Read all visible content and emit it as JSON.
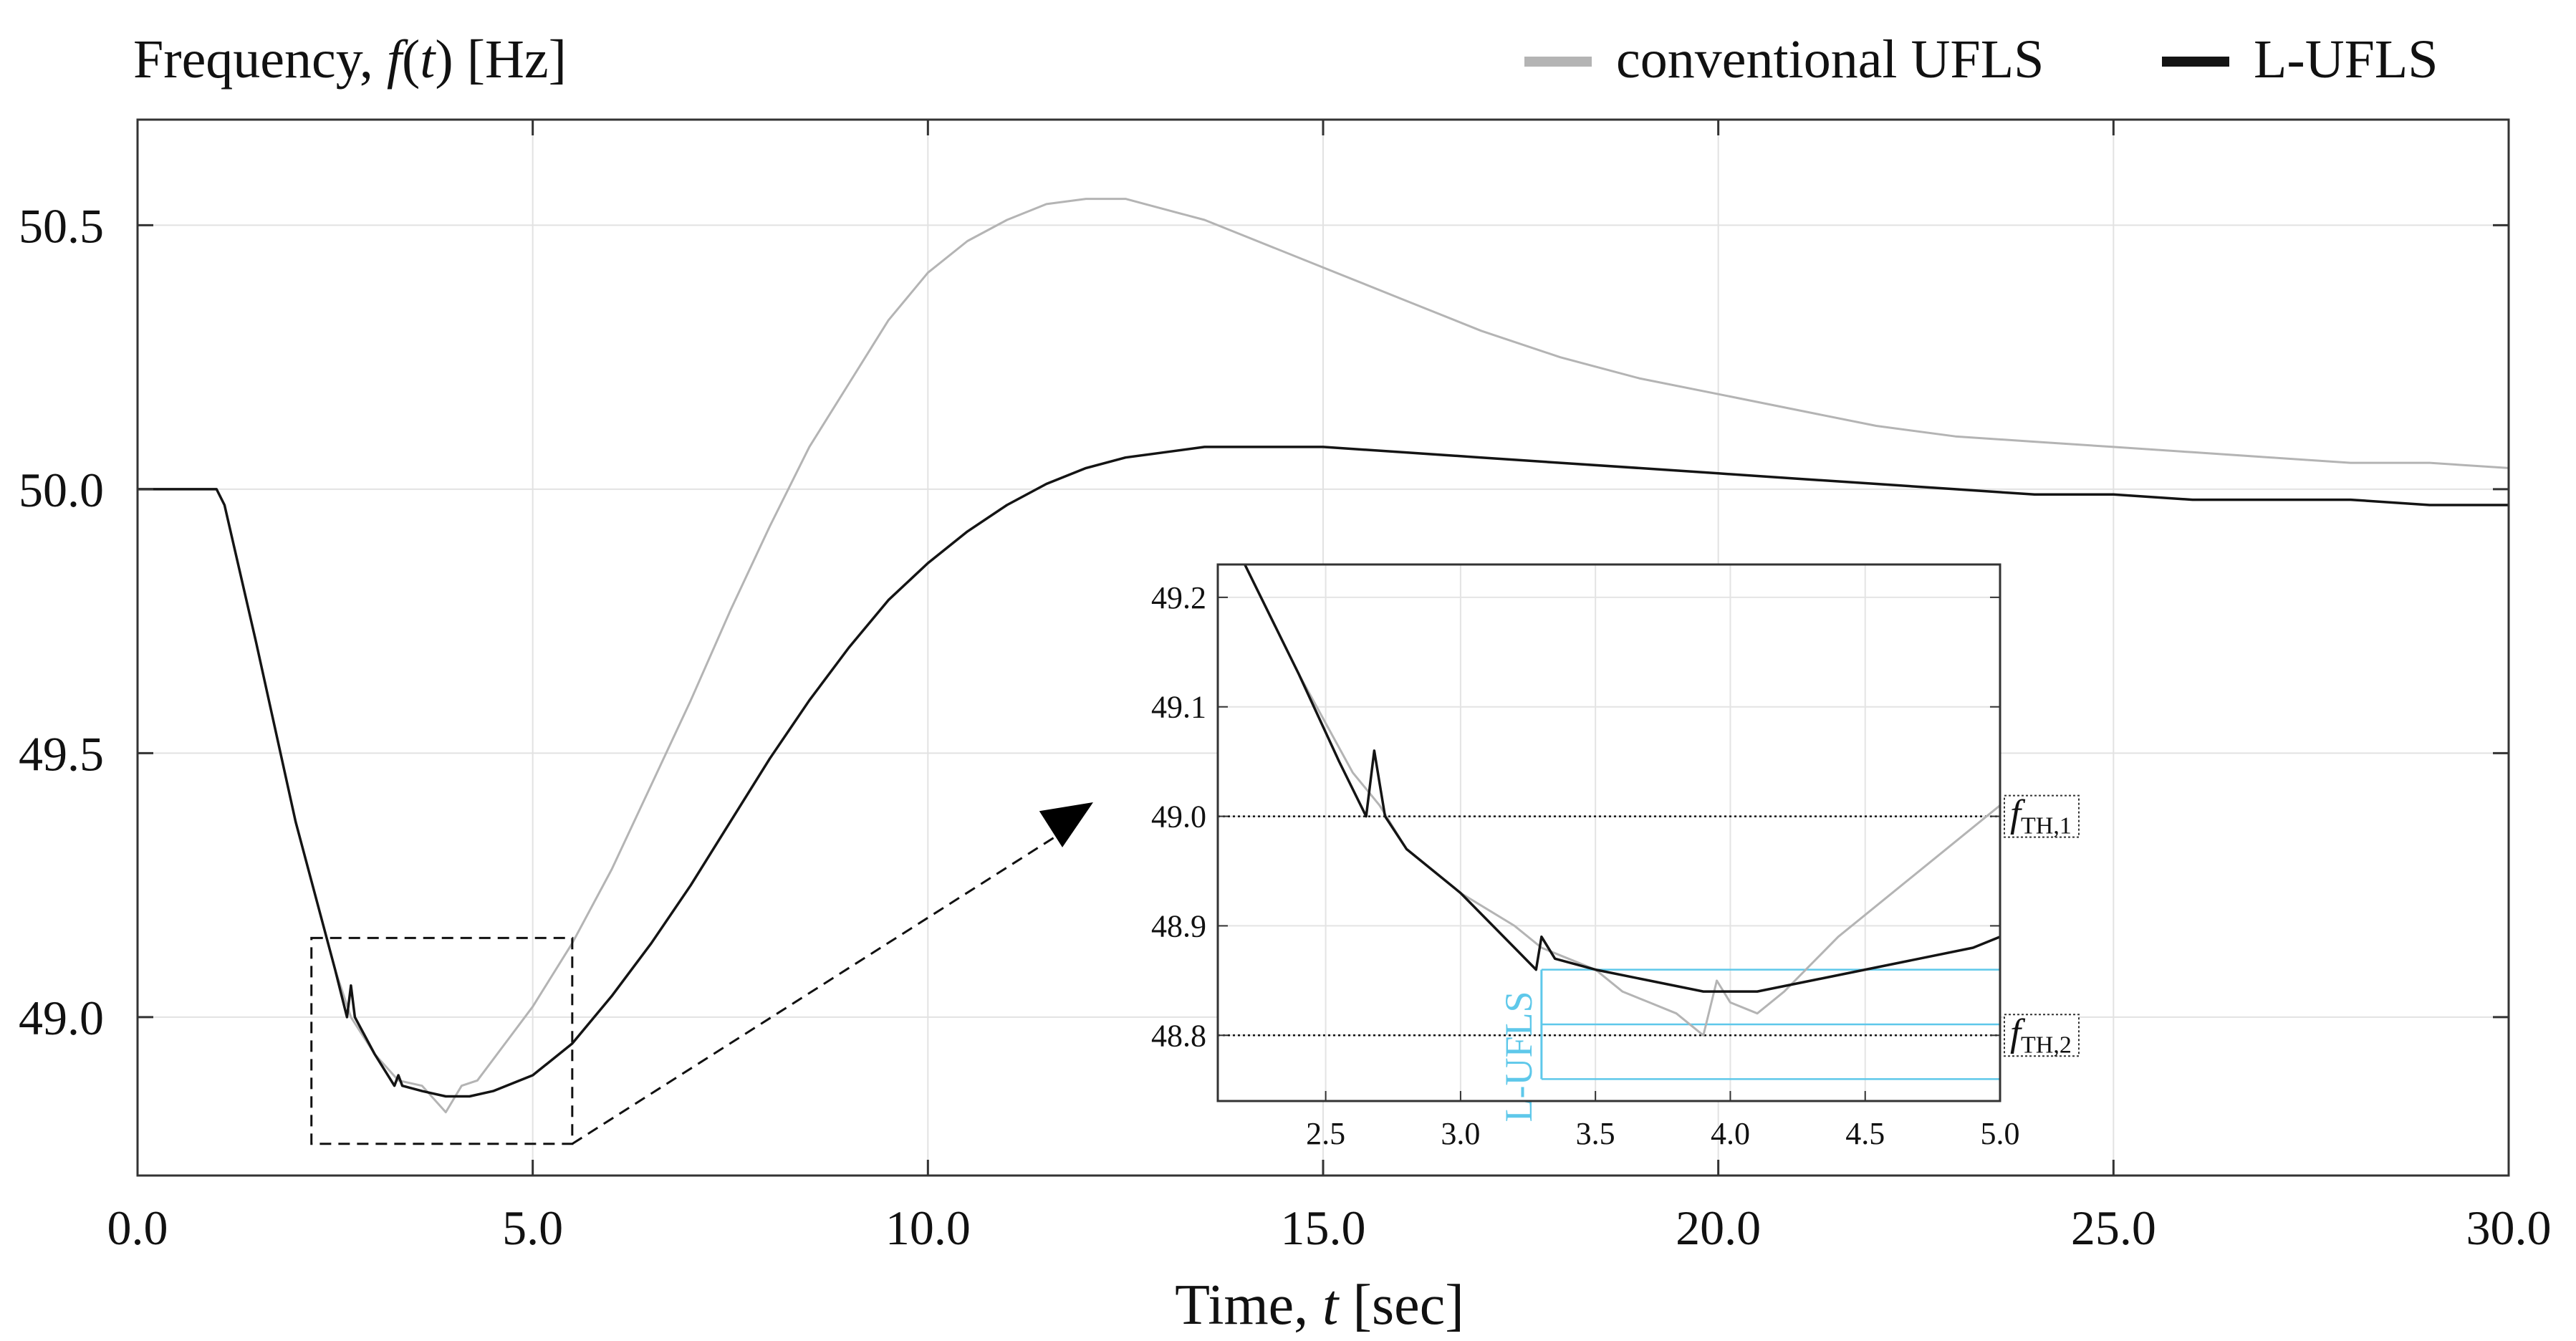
{
  "chart_data": {
    "type": "line",
    "title": "Frequency, f(t) [Hz]",
    "title_parts": {
      "prefix": "Frequency, ",
      "var": "f",
      "arg_open": "(",
      "arg": "t",
      "arg_close": ")",
      "unit": " [Hz]"
    },
    "xlabel": "Time, t [sec]",
    "xlabel_parts": {
      "prefix": "Time, ",
      "var": "t",
      "unit": " [sec]"
    },
    "ylabel": "",
    "xlim": [
      0,
      30
    ],
    "ylim": [
      48.7,
      50.7
    ],
    "xticks": [
      0,
      5,
      10,
      15,
      20,
      25,
      30
    ],
    "xtick_labels": [
      "0.0",
      "5.0",
      "10.0",
      "15.0",
      "20.0",
      "25.0",
      "30.0"
    ],
    "yticks": [
      49.0,
      49.5,
      50.0,
      50.5
    ],
    "ytick_labels": [
      "49.0",
      "49.5",
      "50.0",
      "50.5"
    ],
    "grid": true,
    "legend_position": "top-right",
    "legend": [
      "conventional UFLS",
      "L-UFLS"
    ],
    "series": [
      {
        "name": "conventional UFLS",
        "color": "#b4b4b4",
        "x": [
          0,
          1.0,
          1.1,
          1.5,
          2.0,
          2.5,
          2.7,
          3.0,
          3.3,
          3.6,
          3.9,
          4.1,
          4.3,
          4.7,
          5.0,
          5.5,
          6.0,
          6.5,
          7.0,
          7.5,
          8.0,
          8.5,
          9.0,
          9.5,
          10.0,
          10.5,
          11.0,
          11.5,
          12.0,
          12.5,
          13.0,
          13.5,
          14.0,
          15.0,
          16.0,
          17.0,
          18.0,
          19.0,
          20.0,
          21.0,
          22.0,
          23.0,
          24.0,
          25.0,
          26.0,
          27.0,
          28.0,
          29.0,
          30.0
        ],
        "y": [
          50.0,
          50.0,
          49.97,
          49.71,
          49.37,
          49.09,
          49.0,
          48.93,
          48.88,
          48.87,
          48.82,
          48.87,
          48.88,
          48.96,
          49.02,
          49.14,
          49.28,
          49.44,
          49.6,
          49.77,
          49.93,
          50.08,
          50.2,
          50.32,
          50.41,
          50.47,
          50.51,
          50.54,
          50.55,
          50.55,
          50.53,
          50.51,
          50.48,
          50.42,
          50.36,
          50.3,
          50.25,
          50.21,
          50.18,
          50.15,
          50.12,
          50.1,
          50.09,
          50.08,
          50.07,
          50.06,
          50.05,
          50.05,
          50.04
        ]
      },
      {
        "name": "L-UFLS",
        "color": "#141414",
        "x": [
          0,
          1.0,
          1.1,
          1.5,
          2.0,
          2.5,
          2.65,
          2.7,
          2.75,
          3.0,
          3.25,
          3.3,
          3.35,
          3.6,
          3.9,
          4.2,
          4.5,
          5.0,
          5.5,
          6.0,
          6.5,
          7.0,
          7.5,
          8.0,
          8.5,
          9.0,
          9.5,
          10.0,
          10.5,
          11.0,
          11.5,
          12.0,
          12.5,
          13.0,
          13.5,
          14.0,
          15.0,
          16.0,
          17.0,
          18.0,
          19.0,
          20.0,
          21.0,
          22.0,
          23.0,
          24.0,
          25.0,
          26.0,
          27.0,
          28.0,
          29.0,
          30.0
        ],
        "y": [
          50.0,
          50.0,
          49.97,
          49.71,
          49.37,
          49.09,
          49.0,
          49.06,
          49.0,
          48.93,
          48.87,
          48.89,
          48.87,
          48.86,
          48.85,
          48.85,
          48.86,
          48.89,
          48.95,
          49.04,
          49.14,
          49.25,
          49.37,
          49.49,
          49.6,
          49.7,
          49.79,
          49.86,
          49.92,
          49.97,
          50.01,
          50.04,
          50.06,
          50.07,
          50.08,
          50.08,
          50.08,
          50.07,
          50.06,
          50.05,
          50.04,
          50.03,
          50.02,
          50.01,
          50.0,
          49.99,
          49.99,
          49.98,
          49.98,
          49.98,
          49.97,
          49.97
        ]
      }
    ],
    "zoom_region": {
      "x": [
        2.2,
        5.5
      ],
      "y": [
        48.76,
        49.15
      ]
    },
    "inset": {
      "xlim": [
        2.1,
        5.0
      ],
      "ylim": [
        48.74,
        49.23
      ],
      "xticks": [
        2.5,
        3.0,
        3.5,
        4.0,
        4.5,
        5.0
      ],
      "xtick_labels": [
        "2.5",
        "3.0",
        "3.5",
        "4.0",
        "4.5",
        "5.0"
      ],
      "yticks": [
        48.8,
        48.9,
        49.0,
        49.1,
        49.2
      ],
      "ytick_labels": [
        "48.8",
        "48.9",
        "49.0",
        "49.1",
        "49.2"
      ],
      "series": [
        {
          "name": "conventional UFLS",
          "color": "#b4b4b4",
          "x": [
            2.2,
            2.4,
            2.6,
            2.7,
            2.8,
            3.0,
            3.2,
            3.3,
            3.4,
            3.5,
            3.6,
            3.7,
            3.8,
            3.9,
            3.95,
            4.0,
            4.1,
            4.2,
            4.4,
            4.6,
            4.8,
            5.0
          ],
          "y": [
            49.23,
            49.13,
            49.04,
            49.01,
            48.97,
            48.93,
            48.9,
            48.88,
            48.87,
            48.86,
            48.84,
            48.83,
            48.82,
            48.8,
            48.85,
            48.83,
            48.82,
            48.84,
            48.89,
            48.93,
            48.97,
            49.01
          ]
        },
        {
          "name": "L-UFLS",
          "color": "#141414",
          "x": [
            2.2,
            2.4,
            2.55,
            2.65,
            2.68,
            2.7,
            2.72,
            2.8,
            3.0,
            3.2,
            3.28,
            3.3,
            3.35,
            3.5,
            3.7,
            3.9,
            4.1,
            4.3,
            4.5,
            4.7,
            4.9,
            5.0
          ],
          "y": [
            49.23,
            49.13,
            49.05,
            49.0,
            49.06,
            49.03,
            49.0,
            48.97,
            48.93,
            48.88,
            48.86,
            48.89,
            48.87,
            48.86,
            48.85,
            48.84,
            48.84,
            48.85,
            48.86,
            48.87,
            48.88,
            48.89
          ]
        }
      ],
      "thresholds": [
        {
          "value": 49.0,
          "label_var": "f",
          "label_sub": "TH,1"
        },
        {
          "value": 48.8,
          "label_var": "f",
          "label_sub": "TH,2"
        }
      ],
      "l_ufls": {
        "label": "L-UFLS",
        "color": "#5ec8ea",
        "start_x": 3.3,
        "levels": [
          48.86,
          48.81,
          48.76
        ]
      }
    }
  }
}
